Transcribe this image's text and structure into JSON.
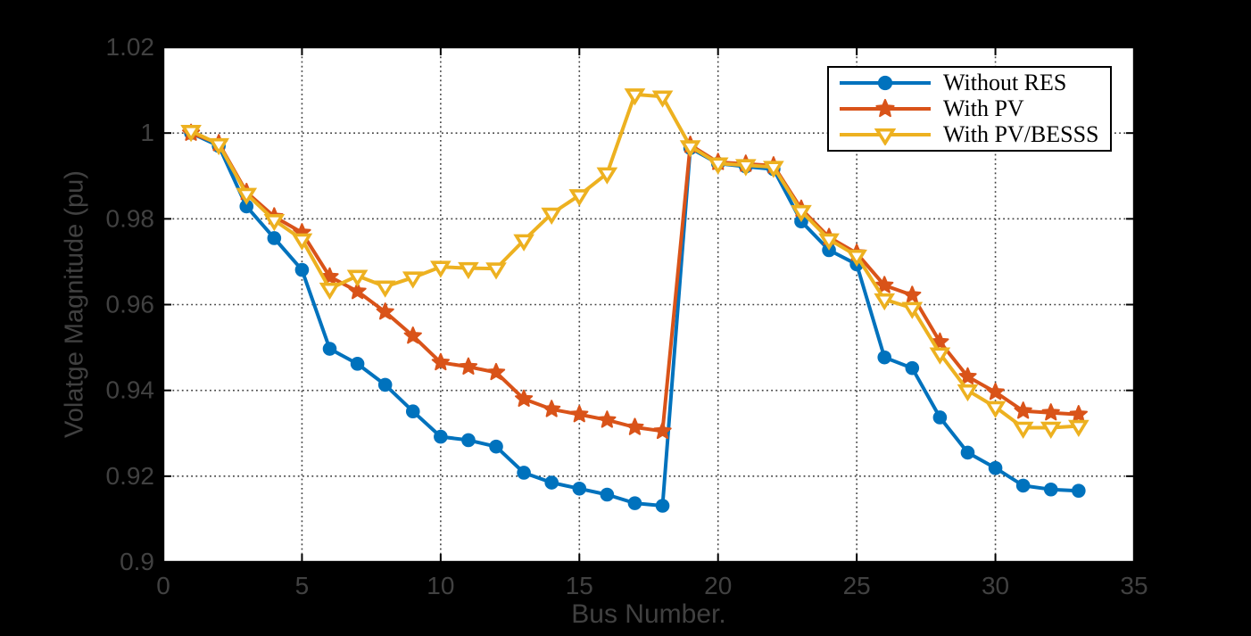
{
  "window": {
    "background": "#000000"
  },
  "chart_data": {
    "type": "line",
    "title": "",
    "xlabel": "Bus Number.",
    "ylabel": "Volatge Magnitude (pu)",
    "xlim": [
      0,
      35
    ],
    "ylim": [
      0.9,
      1.02
    ],
    "x_ticks": [
      0,
      5,
      10,
      15,
      20,
      25,
      30,
      35
    ],
    "x_tick_labels": [
      "0",
      "5",
      "10",
      "15",
      "20",
      "25",
      "30",
      "35"
    ],
    "y_ticks": [
      0.9,
      0.92,
      0.94,
      0.96,
      0.98,
      1,
      1.02
    ],
    "y_tick_labels": [
      "0.9",
      "0.92",
      "0.94",
      "0.96",
      "0.98",
      "1",
      "1.02"
    ],
    "grid": "dotted",
    "plot_background": "#ffffff",
    "axis_color": "#000000",
    "axis_text_color": "#414141",
    "grid_color": "#404040",
    "legend": {
      "position": "top-right",
      "background": "#ffffff",
      "border_color": "#000000"
    },
    "x": [
      1,
      2,
      3,
      4,
      5,
      6,
      7,
      8,
      9,
      10,
      11,
      12,
      13,
      14,
      15,
      16,
      17,
      18,
      19,
      20,
      21,
      22,
      23,
      24,
      25,
      26,
      27,
      28,
      29,
      30,
      31,
      32,
      33
    ],
    "series": [
      {
        "name": "Without RES",
        "color": "#0072BD",
        "marker": "circle",
        "values": [
          1.0,
          0.997,
          0.9829,
          0.9755,
          0.9681,
          0.9497,
          0.9462,
          0.9413,
          0.9351,
          0.9292,
          0.9284,
          0.9269,
          0.9208,
          0.9185,
          0.9171,
          0.9157,
          0.9137,
          0.9131,
          0.9965,
          0.9929,
          0.9922,
          0.9916,
          0.9794,
          0.9727,
          0.9694,
          0.9477,
          0.9452,
          0.9337,
          0.9255,
          0.9219,
          0.9178,
          0.9169,
          0.9166
        ]
      },
      {
        "name": "With PV",
        "color": "#D95319",
        "marker": "star",
        "values": [
          1.0,
          0.9976,
          0.9862,
          0.9805,
          0.9768,
          0.9665,
          0.9631,
          0.9583,
          0.9527,
          0.9465,
          0.9455,
          0.9442,
          0.938,
          0.9356,
          0.9344,
          0.9331,
          0.9314,
          0.9305,
          0.9972,
          0.9932,
          0.9928,
          0.9924,
          0.9823,
          0.9757,
          0.972,
          0.9645,
          0.9622,
          0.9513,
          0.9432,
          0.9396,
          0.9352,
          0.9348,
          0.9344
        ]
      },
      {
        "name": "With PV/BESSS",
        "color": "#EDB120",
        "marker": "triangle-down",
        "values": [
          1.0005,
          0.9974,
          0.9858,
          0.9797,
          0.9752,
          0.9637,
          0.9667,
          0.9642,
          0.9663,
          0.9688,
          0.9685,
          0.9684,
          0.975,
          0.9812,
          0.9855,
          0.9906,
          1.009,
          1.0085,
          0.9969,
          0.9929,
          0.9925,
          0.9921,
          0.9818,
          0.9752,
          0.9714,
          0.9612,
          0.9592,
          0.9486,
          0.94,
          0.9361,
          0.9313,
          0.9313,
          0.9317
        ]
      }
    ]
  }
}
